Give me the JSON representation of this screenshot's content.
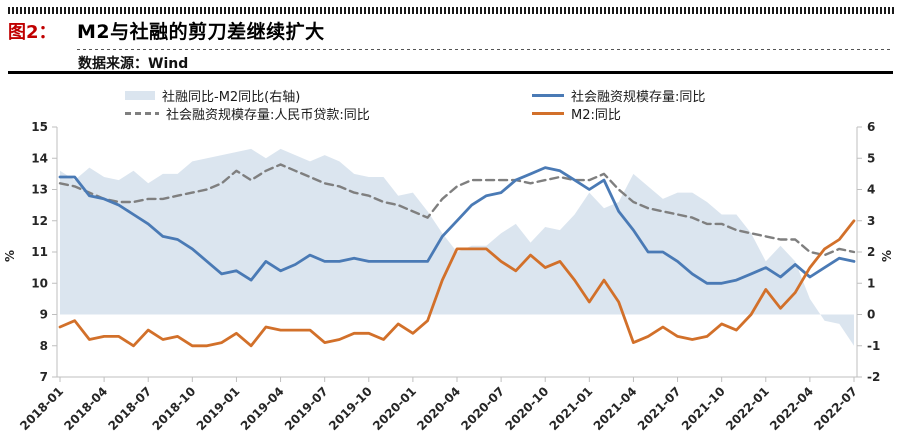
{
  "figure": {
    "label": "图2：",
    "title": "M2与社融的剪刀差继续扩大",
    "source": "数据来源：Wind",
    "accent_color": "#c00000"
  },
  "legend": [
    {
      "label": "社融同比-M2同比(右轴)",
      "type": "area",
      "color": "#dbe5ef"
    },
    {
      "label": "社会融资规模存量:人民币贷款:同比",
      "type": "dashed-line",
      "color": "#7f7f7f"
    },
    {
      "label": "社会融资规模存量:同比",
      "type": "line",
      "color": "#4a7ab5"
    },
    {
      "label": "M2:同比",
      "type": "line",
      "color": "#d2702a"
    }
  ],
  "chart_data": {
    "type": "line",
    "grid": false,
    "legend_position": "top",
    "x": [
      "2018-01",
      "2018-02",
      "2018-03",
      "2018-04",
      "2018-05",
      "2018-06",
      "2018-07",
      "2018-08",
      "2018-09",
      "2018-10",
      "2018-11",
      "2018-12",
      "2019-01",
      "2019-02",
      "2019-03",
      "2019-04",
      "2019-05",
      "2019-06",
      "2019-07",
      "2019-08",
      "2019-09",
      "2019-10",
      "2019-11",
      "2019-12",
      "2020-01",
      "2020-02",
      "2020-03",
      "2020-04",
      "2020-05",
      "2020-06",
      "2020-07",
      "2020-08",
      "2020-09",
      "2020-10",
      "2020-11",
      "2020-12",
      "2021-01",
      "2021-02",
      "2021-03",
      "2021-04",
      "2021-05",
      "2021-06",
      "2021-07",
      "2021-08",
      "2021-09",
      "2021-10",
      "2021-11",
      "2021-12",
      "2022-01",
      "2022-02",
      "2022-03",
      "2022-04",
      "2022-05",
      "2022-06",
      "2022-07"
    ],
    "x_ticks_shown": [
      "2018-01",
      "2018-04",
      "2018-07",
      "2018-10",
      "2019-01",
      "2019-04",
      "2019-07",
      "2019-10",
      "2020-01",
      "2020-04",
      "2020-07",
      "2020-10",
      "2021-01",
      "2021-04",
      "2021-07",
      "2021-10",
      "2022-01",
      "2022-04",
      "2022-07"
    ],
    "y_left": {
      "unit": "%",
      "min": 7,
      "max": 15,
      "tick_labels": [
        "15",
        "14",
        "13",
        "12",
        "11",
        "10",
        "9",
        "8",
        "7"
      ]
    },
    "y_right": {
      "unit": "%",
      "min": -2,
      "max": 6,
      "tick_labels": [
        "6",
        "5",
        "4",
        "3",
        "2",
        "1",
        "0",
        "-1",
        "-2"
      ]
    },
    "series": [
      {
        "name": "社融同比-M2同比(右轴)",
        "axis": "right",
        "type": "area",
        "color": "#dbe5ef",
        "values": [
          4.6,
          4.3,
          4.7,
          4.4,
          4.3,
          4.6,
          4.2,
          4.5,
          4.5,
          4.9,
          5.0,
          5.1,
          5.2,
          5.3,
          5.0,
          5.3,
          5.1,
          4.9,
          5.1,
          4.9,
          4.5,
          4.4,
          4.4,
          3.8,
          3.9,
          3.3,
          2.6,
          2.0,
          2.2,
          2.2,
          2.6,
          2.9,
          2.3,
          2.8,
          2.7,
          3.2,
          3.9,
          3.4,
          3.6,
          4.5,
          4.1,
          3.7,
          3.9,
          3.9,
          3.6,
          3.2,
          3.2,
          2.6,
          1.7,
          2.2,
          1.7,
          0.5,
          -0.2,
          -0.3,
          -1.0
        ]
      },
      {
        "name": "社会融资规模存量:人民币贷款:同比",
        "axis": "left",
        "type": "line",
        "style": "dashed",
        "color": "#7f7f7f",
        "values": [
          13.2,
          13.1,
          12.9,
          12.7,
          12.6,
          12.6,
          12.7,
          12.7,
          12.8,
          12.9,
          13.0,
          13.2,
          13.6,
          13.3,
          13.6,
          13.8,
          13.6,
          13.4,
          13.2,
          13.1,
          12.9,
          12.8,
          12.6,
          12.5,
          12.3,
          12.1,
          12.7,
          13.1,
          13.3,
          13.3,
          13.3,
          13.3,
          13.2,
          13.3,
          13.4,
          13.3,
          13.3,
          13.5,
          13.0,
          12.6,
          12.4,
          12.3,
          12.2,
          12.1,
          11.9,
          11.9,
          11.7,
          11.6,
          11.5,
          11.4,
          11.4,
          11.0,
          10.9,
          11.1,
          11.0
        ]
      },
      {
        "name": "社会融资规模存量:同比",
        "axis": "left",
        "type": "line",
        "style": "solid",
        "color": "#4a7ab5",
        "values": [
          13.4,
          13.4,
          12.8,
          12.7,
          12.5,
          12.2,
          11.9,
          11.5,
          11.4,
          11.1,
          10.7,
          10.3,
          10.4,
          10.1,
          10.7,
          10.4,
          10.6,
          10.9,
          10.7,
          10.7,
          10.8,
          10.7,
          10.7,
          10.7,
          10.7,
          10.7,
          11.5,
          12.0,
          12.5,
          12.8,
          12.9,
          13.3,
          13.5,
          13.7,
          13.6,
          13.3,
          13.0,
          13.3,
          12.3,
          11.7,
          11.0,
          11.0,
          10.7,
          10.3,
          10.0,
          10.0,
          10.1,
          10.3,
          10.5,
          10.2,
          10.6,
          10.2,
          10.5,
          10.8,
          10.7
        ]
      },
      {
        "name": "M2:同比",
        "axis": "left",
        "type": "line",
        "style": "solid",
        "color": "#d2702a",
        "values": [
          8.6,
          8.8,
          8.2,
          8.3,
          8.3,
          8.0,
          8.5,
          8.2,
          8.3,
          8.0,
          8.0,
          8.1,
          8.4,
          8.0,
          8.6,
          8.5,
          8.5,
          8.5,
          8.1,
          8.2,
          8.4,
          8.4,
          8.2,
          8.7,
          8.4,
          8.8,
          10.1,
          11.1,
          11.1,
          11.1,
          10.7,
          10.4,
          10.9,
          10.5,
          10.7,
          10.1,
          9.4,
          10.1,
          9.4,
          8.1,
          8.3,
          8.6,
          8.3,
          8.2,
          8.3,
          8.7,
          8.5,
          9.0,
          9.8,
          9.2,
          9.7,
          10.5,
          11.1,
          11.4,
          12.0
        ]
      }
    ]
  }
}
